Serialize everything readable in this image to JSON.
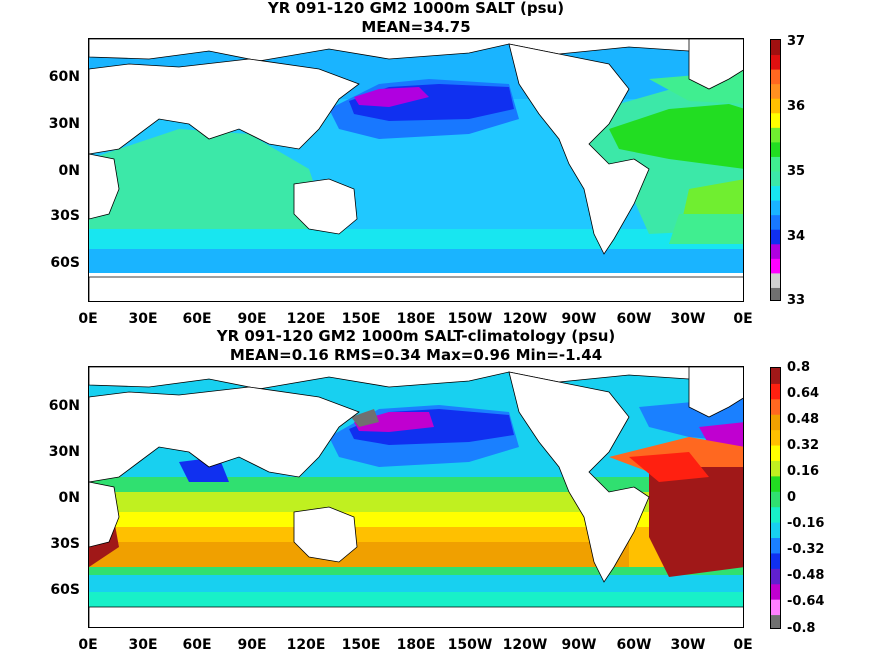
{
  "panel1": {
    "title": "YR 091-120 GM2 1000m SALT (psu)",
    "subtitle": "MEAN=34.75",
    "colorbar_labels": [
      "37",
      "36",
      "35",
      "34",
      "33"
    ]
  },
  "panel2": {
    "title": "YR 091-120 GM2 1000m SALT-climatology (psu)",
    "subtitle": "MEAN=0.16   RMS=0.34   Max=0.96   Min=-1.44",
    "colorbar_labels": [
      "0.8",
      "0.64",
      "0.48",
      "0.32",
      "0.16",
      "0",
      "-0.16",
      "-0.32",
      "-0.48",
      "-0.64",
      "-0.8"
    ]
  },
  "lat_labels": [
    "60N",
    "30N",
    "0N",
    "30S",
    "60S"
  ],
  "lon_labels": [
    "0E",
    "30E",
    "60E",
    "90E",
    "120E",
    "150E",
    "180E",
    "150W",
    "120W",
    "90W",
    "60W",
    "30W",
    "0E"
  ],
  "colors": {
    "panel1_scale": [
      "#707070",
      "#d0d0d0",
      "#ff00ff",
      "#b000e0",
      "#1030f0",
      "#1878ff",
      "#1ab4ff",
      "#18e6f0",
      "#3ce8a8",
      "#40ee90",
      "#22dd22",
      "#70ee30",
      "#ffff00",
      "#ffc000",
      "#ff9020",
      "#ff6820",
      "#e01010",
      "#a01010"
    ],
    "panel2_scale": [
      "#707070",
      "#ff80ff",
      "#c000d0",
      "#6020d0",
      "#1030f0",
      "#1a80ff",
      "#18d0f0",
      "#18f0c8",
      "#30e070",
      "#22dd22",
      "#c0f020",
      "#ffff00",
      "#ffc000",
      "#f0a000",
      "#ff6820",
      "#ff2010",
      "#a01818"
    ]
  }
}
